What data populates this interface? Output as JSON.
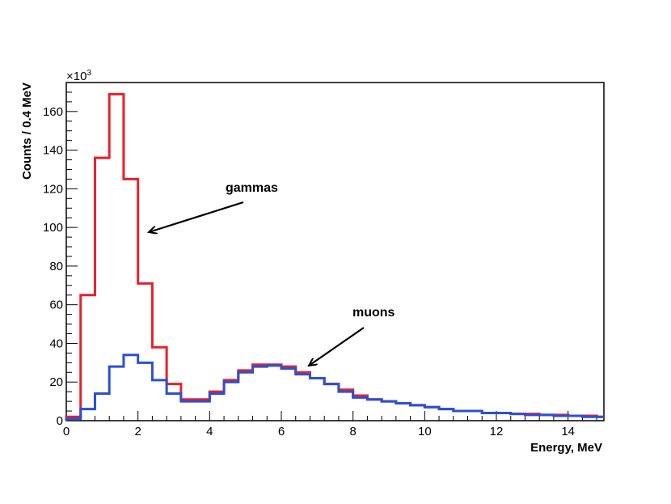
{
  "chart_data": {
    "type": "step-histogram",
    "xlabel": "Energy, MeV",
    "ylabel": "Counts / 0.4 MeV",
    "y_multiplier": "×10",
    "y_multiplier_exp": "3",
    "xlim": [
      0,
      15
    ],
    "ylim": [
      0,
      175
    ],
    "bin_width": 0.4,
    "x_ticks": [
      0,
      2,
      4,
      6,
      8,
      10,
      12,
      14
    ],
    "x_tick_labels": [
      "0",
      "2",
      "4",
      "6",
      "8",
      "10",
      "12",
      "14"
    ],
    "y_ticks": [
      0,
      20,
      40,
      60,
      80,
      100,
      120,
      140,
      160
    ],
    "y_tick_labels": [
      "0",
      "20",
      "40",
      "60",
      "80",
      "100",
      "120",
      "140",
      "160"
    ],
    "grid": false,
    "series": [
      {
        "color": "#e8202a",
        "label": "gammas",
        "values": [
          2,
          65,
          136,
          169,
          125,
          71,
          38,
          19,
          11,
          11,
          15,
          21,
          26,
          29,
          29,
          28,
          25,
          22,
          19,
          16,
          13,
          11,
          10,
          9,
          8,
          7,
          6,
          5,
          5,
          4,
          4,
          3.5,
          3.5,
          3,
          3,
          2.5,
          2.5,
          2
        ]
      },
      {
        "color": "#2b4fd6",
        "label": "muons",
        "values": [
          1,
          6,
          14,
          28,
          34,
          30,
          21,
          14,
          10,
          10,
          14,
          20,
          25,
          28,
          28.5,
          27,
          24,
          22,
          19,
          15,
          12,
          11,
          10,
          9,
          8,
          7,
          6,
          5,
          5,
          4,
          4,
          3.5,
          3,
          3,
          2.5,
          2.5,
          2,
          2
        ]
      }
    ],
    "annotations": [
      {
        "text": "gammas",
        "points_to_x": 2.3,
        "points_to_y": 100
      },
      {
        "text": "muons",
        "points_to_x": 6.7,
        "points_to_y": 29
      }
    ]
  }
}
